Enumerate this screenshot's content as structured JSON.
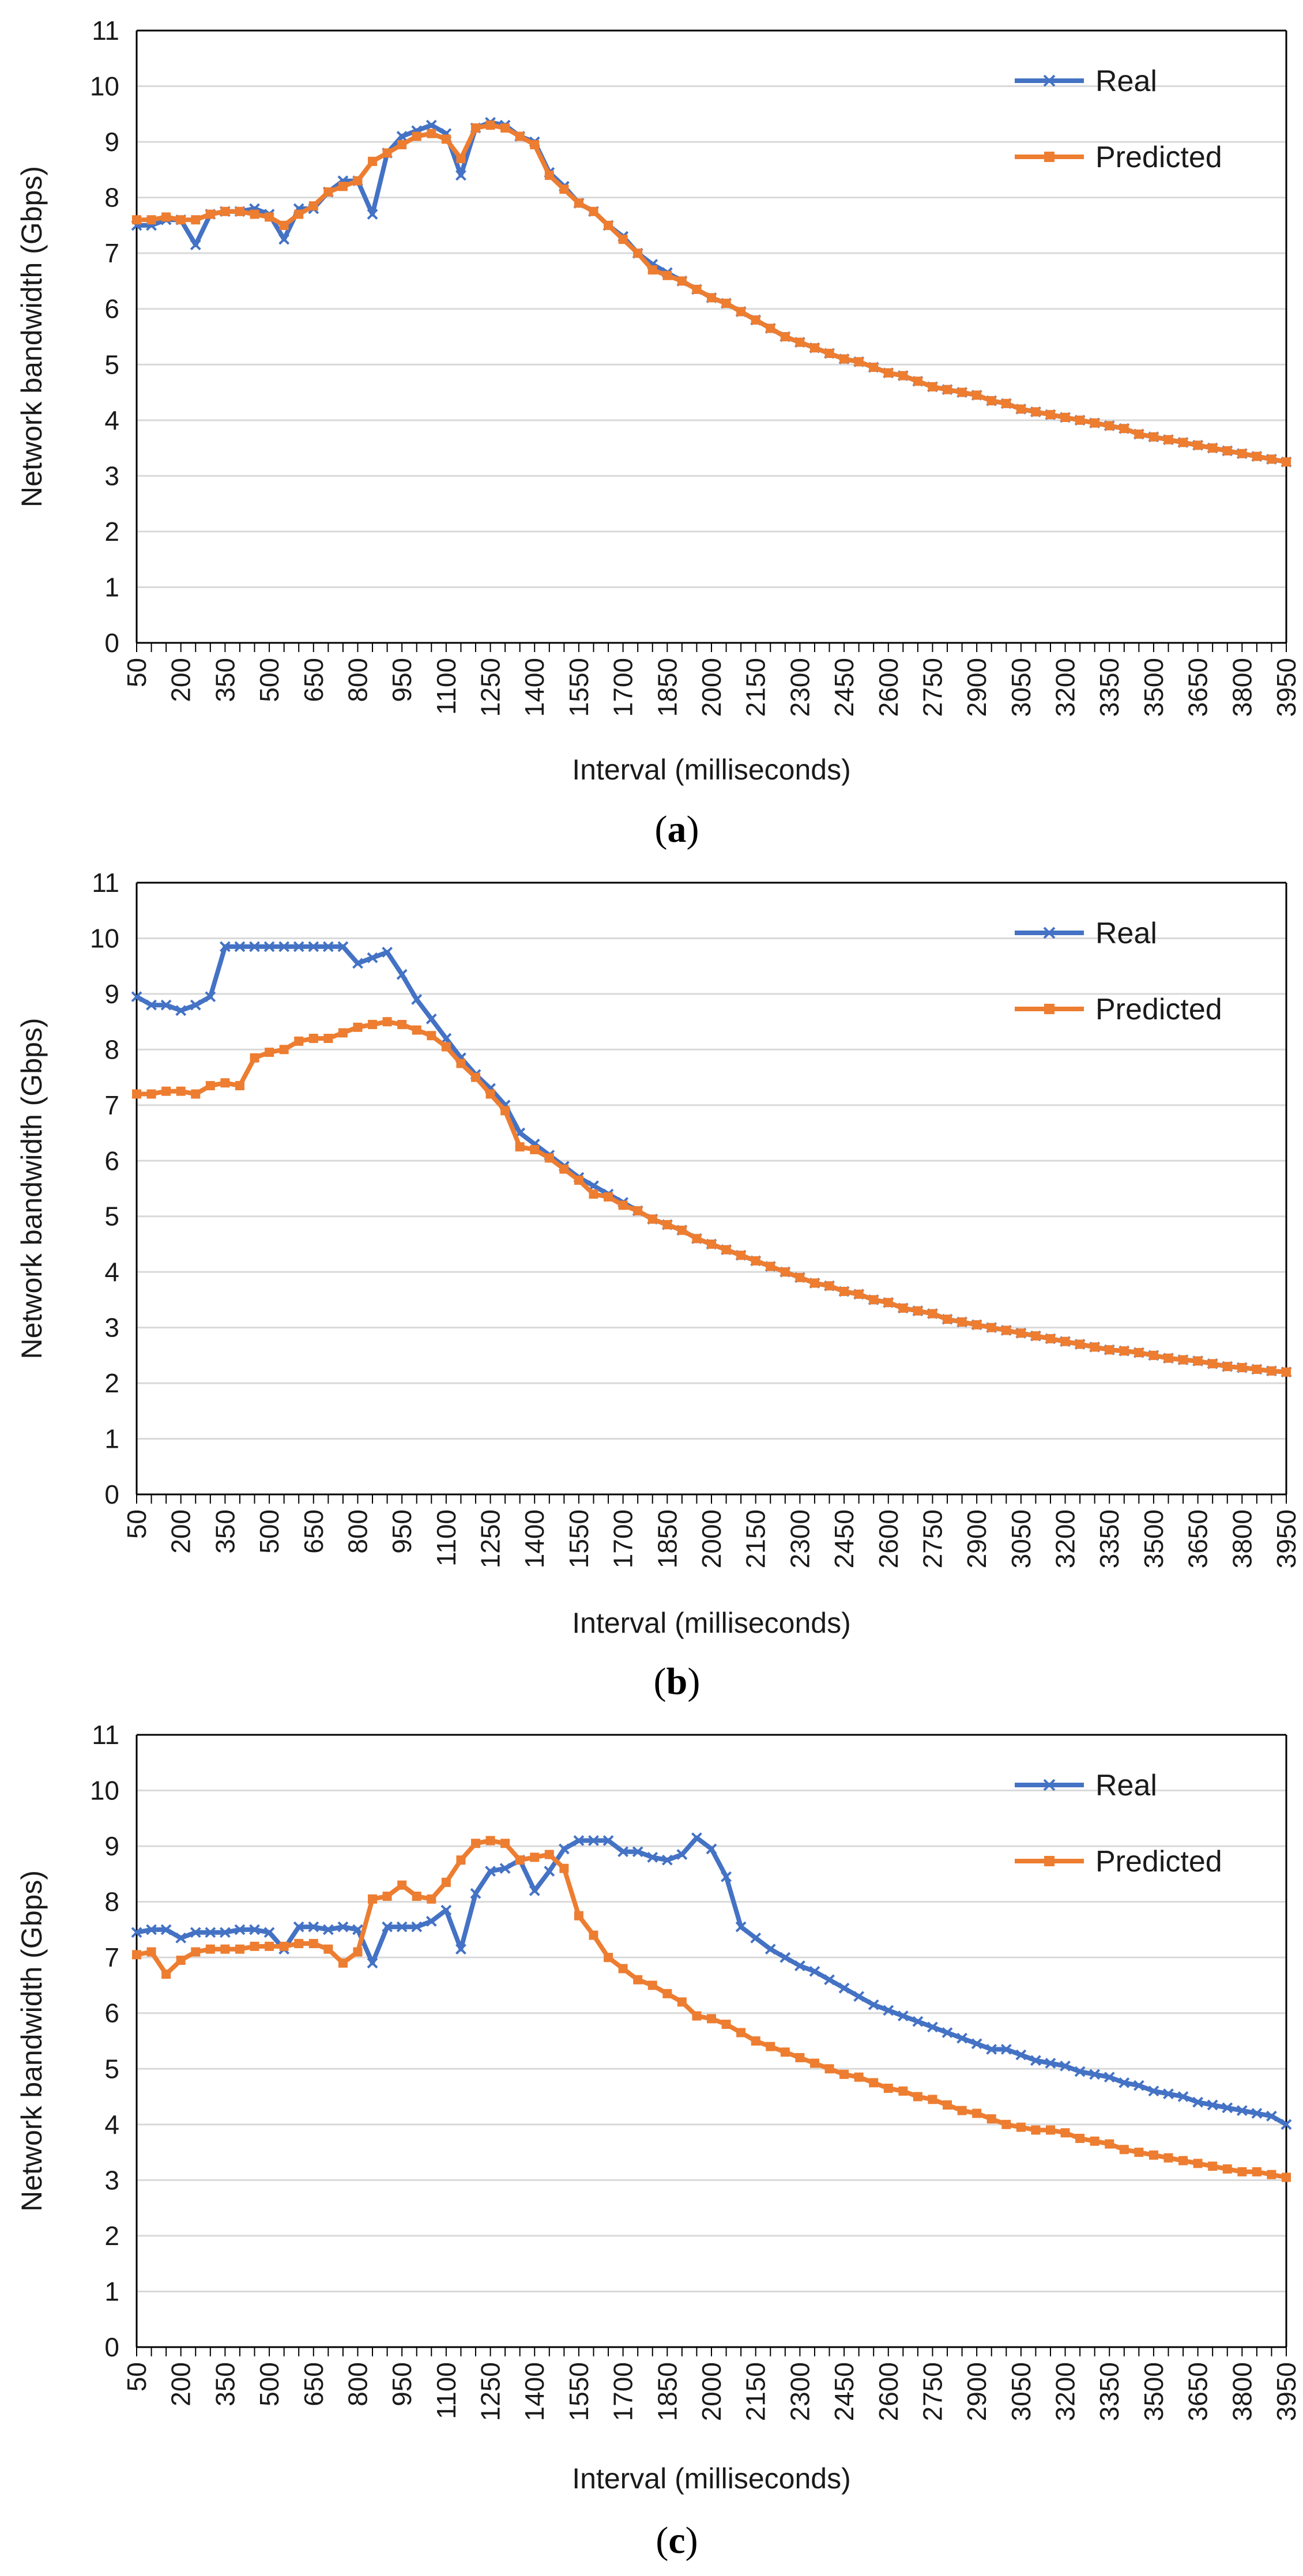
{
  "colors": {
    "real": "#4472C4",
    "predicted": "#ED7D31",
    "grid": "#d9d9d9",
    "axis": "#000000"
  },
  "chart_data": [
    {
      "type": "line",
      "panel_label": {
        "open": "(",
        "letter": "a",
        "close": ")"
      },
      "xlabel": "Interval (milliseconds)",
      "ylabel": "Network bandwidth (Gbps)",
      "ylim": [
        0,
        11
      ],
      "x_start": 50,
      "x_step": 50,
      "x_tick_labels": [
        "50",
        "200",
        "350",
        "500",
        "650",
        "800",
        "950",
        "1100",
        "1250",
        "1400",
        "1550",
        "1700",
        "1850",
        "2000",
        "2150",
        "2300",
        "2450",
        "2600",
        "2750",
        "2900",
        "3050",
        "3200",
        "3350",
        "3500",
        "3650",
        "3800",
        "3950"
      ],
      "y_tick_labels": [
        "0",
        "1",
        "2",
        "3",
        "4",
        "5",
        "6",
        "7",
        "8",
        "9",
        "10",
        "11"
      ],
      "grid": "horizontal",
      "legend_position": "top-right",
      "series": [
        {
          "name": "Real",
          "marker": "x",
          "values": [
            7.5,
            7.5,
            7.6,
            7.6,
            7.15,
            7.7,
            7.75,
            7.75,
            7.8,
            7.7,
            7.25,
            7.8,
            7.8,
            8.1,
            8.3,
            8.3,
            7.7,
            8.8,
            9.1,
            9.2,
            9.3,
            9.15,
            8.4,
            9.25,
            9.35,
            9.3,
            9.1,
            9.0,
            8.45,
            8.2,
            7.9,
            7.75,
            7.5,
            7.3,
            7.0,
            6.8,
            6.65,
            6.5,
            6.35,
            6.2,
            6.1,
            5.95,
            5.8,
            5.65,
            5.5,
            5.4,
            5.3,
            5.2,
            5.1,
            5.05,
            4.95,
            4.85,
            4.8,
            4.7,
            4.6,
            4.55,
            4.5,
            4.45,
            4.35,
            4.3,
            4.2,
            4.15,
            4.1,
            4.05,
            4.0,
            3.95,
            3.9,
            3.85,
            3.75,
            3.7,
            3.65,
            3.6,
            3.55,
            3.5,
            3.45,
            3.4,
            3.35,
            3.3,
            3.25
          ]
        },
        {
          "name": "Predicted",
          "marker": "square",
          "values": [
            7.6,
            7.6,
            7.65,
            7.6,
            7.6,
            7.7,
            7.75,
            7.75,
            7.7,
            7.65,
            7.5,
            7.7,
            7.85,
            8.1,
            8.2,
            8.3,
            8.65,
            8.8,
            8.95,
            9.1,
            9.15,
            9.05,
            8.7,
            9.25,
            9.3,
            9.25,
            9.1,
            8.95,
            8.4,
            8.15,
            7.9,
            7.75,
            7.5,
            7.25,
            7.0,
            6.7,
            6.6,
            6.5,
            6.35,
            6.2,
            6.1,
            5.95,
            5.8,
            5.65,
            5.5,
            5.4,
            5.3,
            5.2,
            5.1,
            5.05,
            4.95,
            4.85,
            4.8,
            4.7,
            4.6,
            4.55,
            4.5,
            4.45,
            4.35,
            4.3,
            4.2,
            4.15,
            4.1,
            4.05,
            4.0,
            3.95,
            3.9,
            3.85,
            3.75,
            3.7,
            3.65,
            3.6,
            3.55,
            3.5,
            3.45,
            3.4,
            3.35,
            3.3,
            3.25
          ]
        }
      ]
    },
    {
      "type": "line",
      "panel_label": {
        "open": "(",
        "letter": "b",
        "close": ")"
      },
      "xlabel": "Interval (milliseconds)",
      "ylabel": "Network bandwidth (Gbps)",
      "ylim": [
        0,
        11
      ],
      "x_start": 50,
      "x_step": 50,
      "x_tick_labels": [
        "50",
        "200",
        "350",
        "500",
        "650",
        "800",
        "950",
        "1100",
        "1250",
        "1400",
        "1550",
        "1700",
        "1850",
        "2000",
        "2150",
        "2300",
        "2450",
        "2600",
        "2750",
        "2900",
        "3050",
        "3200",
        "3350",
        "3500",
        "3650",
        "3800",
        "3950"
      ],
      "y_tick_labels": [
        "0",
        "1",
        "2",
        "3",
        "4",
        "5",
        "6",
        "7",
        "8",
        "9",
        "10",
        "11"
      ],
      "grid": "horizontal",
      "legend_position": "top-right",
      "series": [
        {
          "name": "Real",
          "marker": "x",
          "values": [
            8.95,
            8.8,
            8.8,
            8.7,
            8.8,
            8.95,
            9.85,
            9.85,
            9.85,
            9.85,
            9.85,
            9.85,
            9.85,
            9.85,
            9.85,
            9.55,
            9.65,
            9.75,
            9.35,
            8.9,
            8.55,
            8.2,
            7.85,
            7.55,
            7.3,
            7.0,
            6.5,
            6.3,
            6.1,
            5.9,
            5.7,
            5.55,
            5.4,
            5.25,
            5.1,
            4.95,
            4.85,
            4.75,
            4.6,
            4.5,
            4.4,
            4.3,
            4.2,
            4.1,
            4.0,
            3.9,
            3.8,
            3.75,
            3.65,
            3.6,
            3.5,
            3.45,
            3.35,
            3.3,
            3.25,
            3.15,
            3.1,
            3.05,
            3.0,
            2.95,
            2.9,
            2.85,
            2.8,
            2.75,
            2.7,
            2.65,
            2.6,
            2.58,
            2.55,
            2.5,
            2.45,
            2.42,
            2.4,
            2.35,
            2.3,
            2.28,
            2.25,
            2.22,
            2.2
          ]
        },
        {
          "name": "Predicted",
          "marker": "square",
          "values": [
            7.2,
            7.2,
            7.25,
            7.25,
            7.2,
            7.35,
            7.4,
            7.35,
            7.85,
            7.95,
            8.0,
            8.15,
            8.2,
            8.2,
            8.3,
            8.4,
            8.45,
            8.5,
            8.45,
            8.35,
            8.25,
            8.05,
            7.75,
            7.5,
            7.2,
            6.9,
            6.25,
            6.2,
            6.05,
            5.85,
            5.65,
            5.4,
            5.35,
            5.2,
            5.1,
            4.95,
            4.85,
            4.75,
            4.6,
            4.5,
            4.4,
            4.3,
            4.2,
            4.1,
            4.0,
            3.9,
            3.8,
            3.75,
            3.65,
            3.6,
            3.5,
            3.45,
            3.35,
            3.3,
            3.25,
            3.15,
            3.1,
            3.05,
            3.0,
            2.95,
            2.9,
            2.85,
            2.8,
            2.75,
            2.7,
            2.65,
            2.6,
            2.58,
            2.55,
            2.5,
            2.45,
            2.42,
            2.4,
            2.35,
            2.3,
            2.28,
            2.25,
            2.22,
            2.2
          ]
        }
      ]
    },
    {
      "type": "line",
      "panel_label": {
        "open": "(",
        "letter": "c",
        "close": ")"
      },
      "xlabel": "Interval (milliseconds)",
      "ylabel": "Network bandwidth (Gbps)",
      "ylim": [
        0,
        11
      ],
      "x_start": 50,
      "x_step": 50,
      "x_tick_labels": [
        "50",
        "200",
        "350",
        "500",
        "650",
        "800",
        "950",
        "1100",
        "1250",
        "1400",
        "1550",
        "1700",
        "1850",
        "2000",
        "2150",
        "2300",
        "2450",
        "2600",
        "2750",
        "2900",
        "3050",
        "3200",
        "3350",
        "3500",
        "3650",
        "3800",
        "3950"
      ],
      "y_tick_labels": [
        "0",
        "1",
        "2",
        "3",
        "4",
        "5",
        "6",
        "7",
        "8",
        "9",
        "10",
        "11"
      ],
      "grid": "horizontal",
      "legend_position": "top-right",
      "series": [
        {
          "name": "Real",
          "marker": "x",
          "values": [
            7.45,
            7.5,
            7.5,
            7.35,
            7.45,
            7.45,
            7.45,
            7.5,
            7.5,
            7.45,
            7.15,
            7.55,
            7.55,
            7.5,
            7.55,
            7.5,
            6.9,
            7.55,
            7.55,
            7.55,
            7.65,
            7.85,
            7.15,
            8.15,
            8.55,
            8.6,
            8.75,
            8.2,
            8.55,
            8.95,
            9.1,
            9.1,
            9.1,
            8.9,
            8.9,
            8.8,
            8.75,
            8.85,
            9.15,
            8.95,
            8.45,
            7.55,
            7.35,
            7.15,
            7.0,
            6.85,
            6.75,
            6.6,
            6.45,
            6.3,
            6.15,
            6.05,
            5.95,
            5.85,
            5.75,
            5.65,
            5.55,
            5.45,
            5.35,
            5.35,
            5.25,
            5.15,
            5.1,
            5.05,
            4.95,
            4.9,
            4.85,
            4.75,
            4.7,
            4.6,
            4.55,
            4.5,
            4.4,
            4.35,
            4.3,
            4.25,
            4.2,
            4.15,
            4.0
          ]
        },
        {
          "name": "Predicted",
          "marker": "square",
          "values": [
            7.05,
            7.1,
            6.7,
            6.95,
            7.1,
            7.15,
            7.15,
            7.15,
            7.2,
            7.2,
            7.2,
            7.25,
            7.25,
            7.15,
            6.9,
            7.1,
            8.05,
            8.1,
            8.3,
            8.1,
            8.05,
            8.35,
            8.75,
            9.05,
            9.1,
            9.05,
            8.75,
            8.8,
            8.85,
            8.6,
            7.75,
            7.4,
            7.0,
            6.8,
            6.6,
            6.5,
            6.35,
            6.2,
            5.95,
            5.9,
            5.8,
            5.65,
            5.5,
            5.4,
            5.3,
            5.2,
            5.1,
            5.0,
            4.9,
            4.85,
            4.75,
            4.65,
            4.6,
            4.5,
            4.45,
            4.35,
            4.25,
            4.2,
            4.1,
            4.0,
            3.95,
            3.9,
            3.9,
            3.85,
            3.75,
            3.7,
            3.65,
            3.55,
            3.5,
            3.45,
            3.4,
            3.35,
            3.3,
            3.25,
            3.2,
            3.15,
            3.15,
            3.1,
            3.05
          ]
        }
      ]
    }
  ]
}
